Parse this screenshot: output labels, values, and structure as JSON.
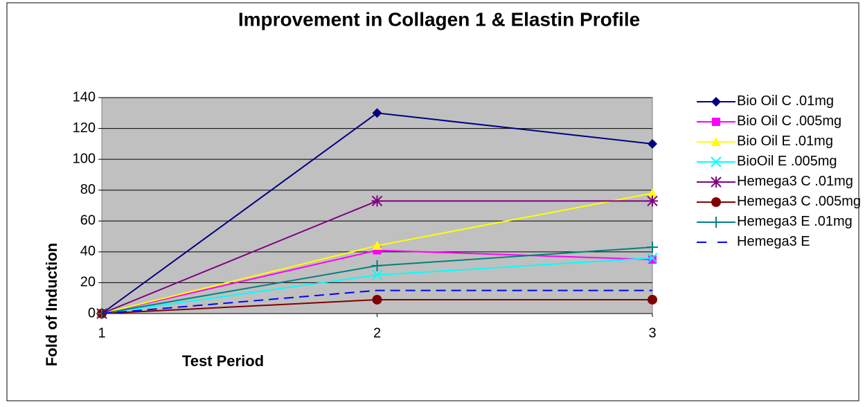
{
  "chart_data": {
    "type": "line",
    "title": "Improvement in Collagen 1 & Elastin Profile",
    "x_label": "Test Period",
    "y_label": "Fold of Induction",
    "x": [
      1,
      2,
      3
    ],
    "xlim": [
      1,
      3
    ],
    "xticks": [
      1,
      2,
      3
    ],
    "ylim": [
      0,
      140
    ],
    "yticks": [
      0,
      20,
      40,
      60,
      80,
      100,
      120,
      140
    ],
    "grid": true,
    "legend": "right",
    "series": [
      {
        "name": "Bio Oil C .01mg",
        "color": "#000080",
        "marker": "diamond",
        "values": [
          0,
          130,
          110
        ]
      },
      {
        "name": "Bio Oil C .005mg",
        "color": "#FF00FF",
        "marker": "square",
        "values": [
          0,
          41,
          35
        ]
      },
      {
        "name": "Bio Oil E .01mg",
        "color": "#FFFF00",
        "marker": "triangle",
        "values": [
          0,
          44,
          78
        ]
      },
      {
        "name": "BioOil E .005mg",
        "color": "#00FFFF",
        "marker": "cross",
        "values": [
          0,
          25,
          36
        ]
      },
      {
        "name": "Hemega3 C .01mg",
        "color": "#800080",
        "marker": "star",
        "values": [
          0,
          73,
          73
        ]
      },
      {
        "name": "Hemega3 C .005mg",
        "color": "#800000",
        "marker": "circle",
        "values": [
          0,
          9,
          9
        ]
      },
      {
        "name": "Hemega3 E .01mg",
        "color": "#008080",
        "marker": "plus",
        "values": [
          0,
          31,
          43
        ]
      },
      {
        "name": "Hemega3 E",
        "color": "#0000FF",
        "marker": "none",
        "dashed": true,
        "values": [
          0,
          15,
          15
        ]
      }
    ]
  }
}
